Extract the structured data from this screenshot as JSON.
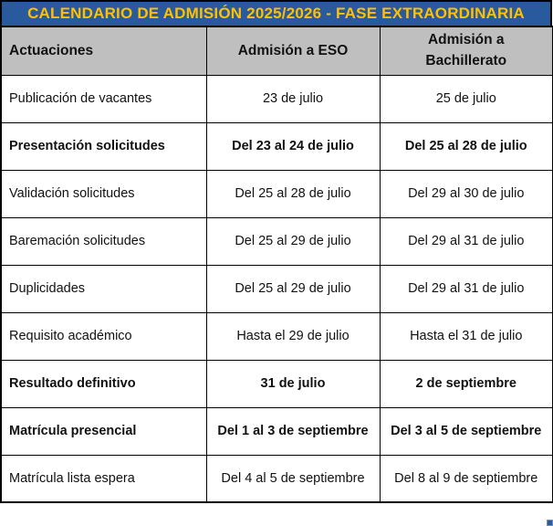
{
  "title": "CALENDARIO DE ADMISIÓN 2025/2026 - FASE EXTRAORDINARIA",
  "colors": {
    "title_bg": "#2A5A9E",
    "title_text": "#FFC000",
    "header_bg": "#BFBFBF",
    "border": "#000000",
    "handle": "#2E5B97"
  },
  "table": {
    "headers": [
      "Actuaciones",
      "Admisión a ESO",
      "Admisión a Bachillerato"
    ],
    "rows": [
      {
        "actuacion": "Publicación de vacantes",
        "eso": "23 de julio",
        "bachillerato": "25 de julio",
        "bold": false
      },
      {
        "actuacion": "Presentación solicitudes",
        "eso": "Del 23 al 24 de julio",
        "bachillerato": "Del 25 al 28 de julio",
        "bold": true
      },
      {
        "actuacion": "Validación solicitudes",
        "eso": "Del 25 al 28 de julio",
        "bachillerato": "Del 29 al 30 de julio",
        "bold": false
      },
      {
        "actuacion": "Baremación solicitudes",
        "eso": "Del 25 al 29 de julio",
        "bachillerato": "Del 29 al 31 de julio",
        "bold": false
      },
      {
        "actuacion": "Duplicidades",
        "eso": "Del 25 al 29 de julio",
        "bachillerato": "Del 29 al 31 de julio",
        "bold": false
      },
      {
        "actuacion": "Requisito académico",
        "eso": "Hasta el 29 de julio",
        "bachillerato": "Hasta el 31 de julio",
        "bold": false
      },
      {
        "actuacion": "Resultado definitivo",
        "eso": "31 de julio",
        "bachillerato": "2 de septiembre",
        "bold": true
      },
      {
        "actuacion": "Matrícula presencial",
        "eso": "Del 1 al 3 de septiembre",
        "bachillerato": "Del 3 al 5 de septiembre",
        "bold": true
      },
      {
        "actuacion": "Matrícula lista espera",
        "eso": "Del 4 al 5 de septiembre",
        "bachillerato": "Del 8 al 9 de septiembre",
        "bold": false
      }
    ]
  }
}
